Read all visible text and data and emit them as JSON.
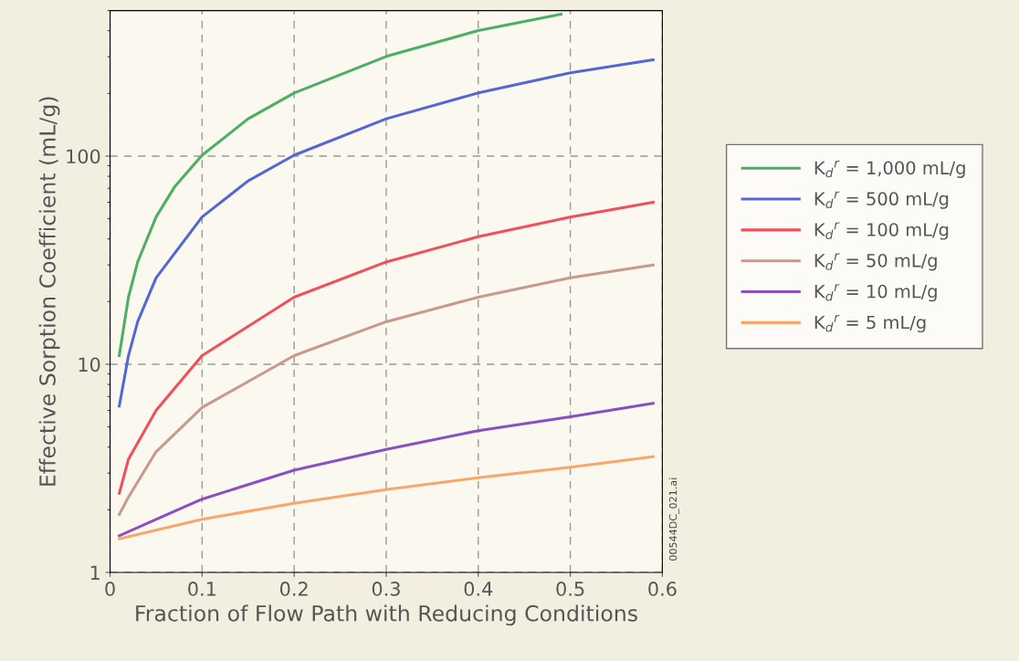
{
  "chart_data": {
    "type": "line",
    "xlabel": "Fraction of Flow Path with Reducing Conditions",
    "ylabel": "Effective Sorption Coefficient (mL/g)",
    "log": "y",
    "xlim": [
      0,
      0.6
    ],
    "ylim": [
      1,
      500
    ],
    "xticks": [
      0,
      0.1,
      0.2,
      0.3,
      0.4,
      0.5,
      0.6
    ],
    "yticks": [
      1,
      10,
      100
    ],
    "grid": true,
    "legend": "right",
    "line_style": "solid",
    "marker": "none",
    "annotations": [
      "00544DC_021.ai"
    ],
    "series": [
      {
        "name": "K$_{d}$$^{r}$ = 1,000 mL/g",
        "color": "#4caf63",
        "x": [
          0.01,
          0.02,
          0.03,
          0.05,
          0.07,
          0.1,
          0.15,
          0.2,
          0.3,
          0.4,
          0.49
        ],
        "values": [
          11,
          21,
          31,
          51,
          71,
          101,
          151,
          201,
          301,
          401,
          480
        ]
      },
      {
        "name": "K$_{d}$$^{r}$ = 500 mL/g",
        "color": "#5566d6",
        "x": [
          0.01,
          0.02,
          0.03,
          0.05,
          0.1,
          0.15,
          0.2,
          0.3,
          0.4,
          0.5,
          0.59
        ],
        "values": [
          6.3,
          11,
          16,
          26,
          51,
          76,
          101,
          151,
          201,
          251,
          290
        ]
      },
      {
        "name": "K$_{d}$$^{r}$ = 100 mL/g",
        "color": "#f0505a",
        "x": [
          0.01,
          0.02,
          0.05,
          0.1,
          0.2,
          0.3,
          0.4,
          0.5,
          0.59
        ],
        "values": [
          2.4,
          3.5,
          6,
          11,
          21,
          31,
          41,
          51,
          60
        ]
      },
      {
        "name": "K$_{d}$$^{r}$ = 50 mL/g",
        "color": "#c89a8e",
        "x": [
          0.01,
          0.02,
          0.05,
          0.1,
          0.2,
          0.3,
          0.4,
          0.5,
          0.59
        ],
        "values": [
          1.9,
          2.3,
          3.8,
          6.2,
          11,
          16,
          21,
          26,
          30
        ]
      },
      {
        "name": "K$_{d}$$^{r}$ = 10 mL/g",
        "color": "#8a4fc0",
        "x": [
          0.01,
          0.05,
          0.1,
          0.2,
          0.3,
          0.4,
          0.5,
          0.59
        ],
        "values": [
          1.5,
          1.8,
          2.25,
          3.1,
          3.9,
          4.8,
          5.6,
          6.5
        ]
      },
      {
        "name": "K$_{d}$$^{r}$ = 5 mL/g",
        "color": "#f9a66a",
        "x": [
          0.01,
          0.1,
          0.2,
          0.3,
          0.4,
          0.5,
          0.59
        ],
        "values": [
          1.45,
          1.8,
          2.15,
          2.5,
          2.85,
          3.2,
          3.6
        ]
      }
    ]
  }
}
